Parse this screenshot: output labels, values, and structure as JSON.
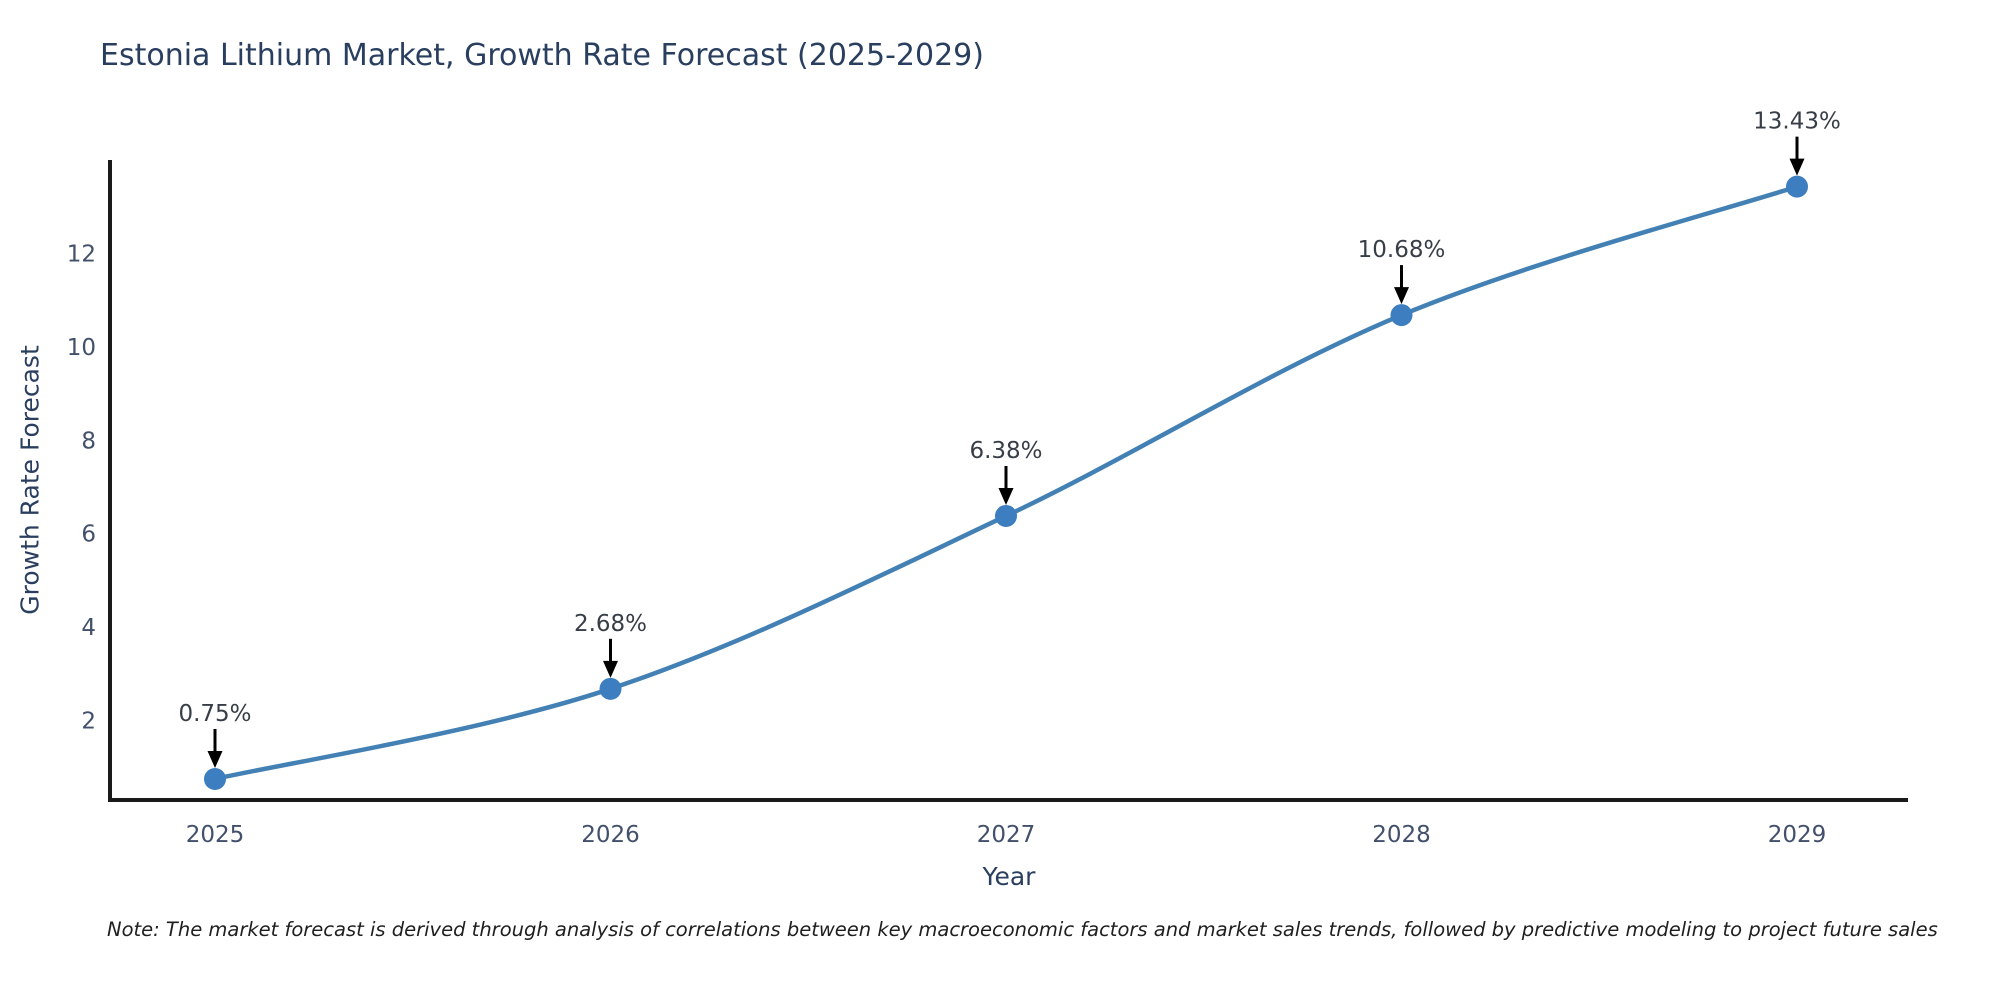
{
  "title": "Estonia Lithium Market, Growth Rate Forecast (2025-2029)",
  "note": "Note: The market forecast is derived through analysis of correlations between key macroeconomic factors and market sales trends, followed by predictive modeling to project future sales",
  "chart_data": {
    "type": "line",
    "title": "Estonia Lithium Market, Growth Rate Forecast (2025-2029)",
    "xlabel": "Year",
    "ylabel": "Growth Rate Forecast",
    "categories": [
      "2025",
      "2026",
      "2027",
      "2028",
      "2029"
    ],
    "values": [
      0.75,
      2.68,
      6.38,
      10.68,
      13.43
    ],
    "point_labels": [
      "0.75%",
      "2.68%",
      "6.38%",
      "10.68%",
      "13.43%"
    ],
    "y_ticks": [
      2,
      4,
      6,
      8,
      10,
      12
    ],
    "ylim": [
      0.3,
      14
    ],
    "grid": false,
    "legend": "none",
    "marker_style": "circle",
    "annotation_style": "down-arrow",
    "colors": {
      "line": "#4381b5",
      "marker": "#3c7ebf",
      "axis": "#1a1a1a",
      "title_text": "#2a3f5f",
      "axis_title_text": "#2a3f5f",
      "tick_text": "#42506b",
      "point_label_text": "#383e47",
      "arrow": "#000000",
      "note_text": "#1f1f1f",
      "background": "#ffffff"
    }
  }
}
